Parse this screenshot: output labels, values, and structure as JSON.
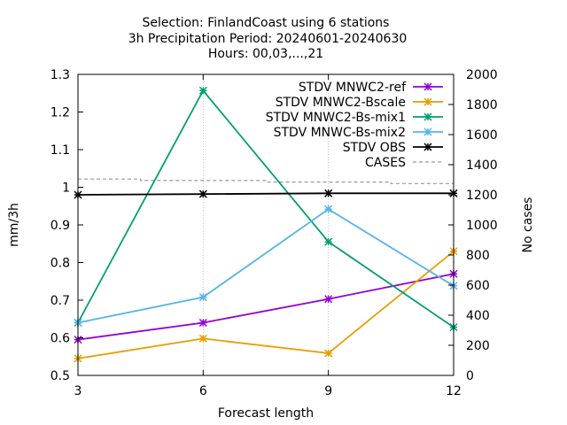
{
  "chart_data": {
    "type": "line",
    "title_lines": [
      "Selection: FinlandCoast using      6 stations",
      "3h Precipitation   Period: 20240601-20240630",
      "Hours: 00,03,...,21"
    ],
    "xlabel": "Forecast length",
    "ylabel": "mm/3h",
    "y2label": "No cases",
    "x": [
      3,
      6,
      9,
      12
    ],
    "xticks": [
      "3",
      "6",
      "9",
      "12"
    ],
    "xlim": [
      3,
      12
    ],
    "ylim": [
      0.5,
      1.3
    ],
    "yticks": [
      "0.5",
      "0.6",
      "0.7",
      "0.8",
      "0.9",
      "1",
      "1.1",
      "1.2",
      "1.3"
    ],
    "y2lim": [
      0,
      2000
    ],
    "y2ticks": [
      "0",
      "200",
      "400",
      "600",
      "800",
      "1000",
      "1200",
      "1400",
      "1600",
      "1800",
      "2000"
    ],
    "grid": true,
    "legend_position": "top-right",
    "series": [
      {
        "name": "STDV MNWC2-ref",
        "color": "#9400d3",
        "axis": "y",
        "marker": "x",
        "values": [
          0.595,
          0.64,
          0.703,
          0.77
        ]
      },
      {
        "name": "STDV MNWC2-Bscale",
        "color": "#e69f00",
        "axis": "y",
        "marker": "x",
        "values": [
          0.545,
          0.598,
          0.559,
          0.83
        ]
      },
      {
        "name": "STDV MNWC2-Bs-mix1",
        "color": "#009e73",
        "axis": "y",
        "marker": "x",
        "values": [
          0.64,
          1.257,
          0.855,
          0.628
        ]
      },
      {
        "name": "STDV MNWC-Bs-mix2",
        "color": "#56b4e9",
        "axis": "y",
        "marker": "x",
        "values": [
          0.64,
          0.708,
          0.942,
          0.738
        ]
      },
      {
        "name": "STDV OBS",
        "color": "#000000",
        "axis": "y",
        "marker": "x",
        "values": [
          0.98,
          0.982,
          0.984,
          0.984
        ]
      },
      {
        "name": "CASES",
        "color": "#999999",
        "axis": "y2",
        "marker": "none",
        "dash": true,
        "x": [
          3,
          4.5,
          4.5,
          7.5,
          7.5,
          10.5,
          10.5,
          12
        ],
        "values": [
          1305,
          1305,
          1295,
          1295,
          1285,
          1285,
          1275,
          1275
        ]
      }
    ]
  }
}
